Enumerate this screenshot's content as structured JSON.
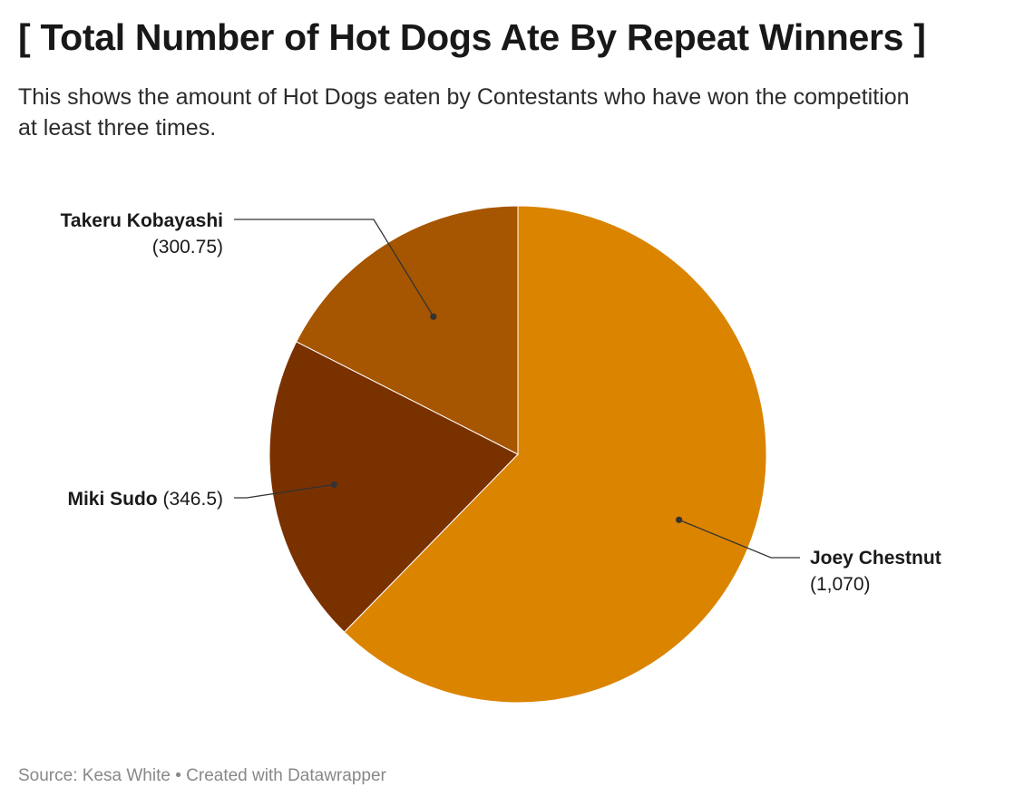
{
  "header": {
    "title": "[ Total Number of Hot Dogs Ate By Repeat Winners ]",
    "subtitle": "This shows the amount of Hot Dogs eaten by Contestants who have won the competition at least three times."
  },
  "chart_data": {
    "type": "pie",
    "slices": [
      {
        "name": "Joey Chestnut",
        "value": 1070,
        "value_label": "(1,070)",
        "color": "#db8400"
      },
      {
        "name": "Miki Sudo",
        "value": 346.5,
        "value_label": "(346.5)",
        "color": "#7a3100"
      },
      {
        "name": "Takeru Kobayashi",
        "value": 300.75,
        "value_label": "(300.75)",
        "color": "#a65500"
      }
    ],
    "start": "12 o'clock",
    "direction": "clockwise",
    "labels": "outside with leader lines"
  },
  "footer": {
    "source_label": "Source:",
    "source": "Kesa White",
    "separator": "•",
    "credit": "Created with Datawrapper"
  }
}
